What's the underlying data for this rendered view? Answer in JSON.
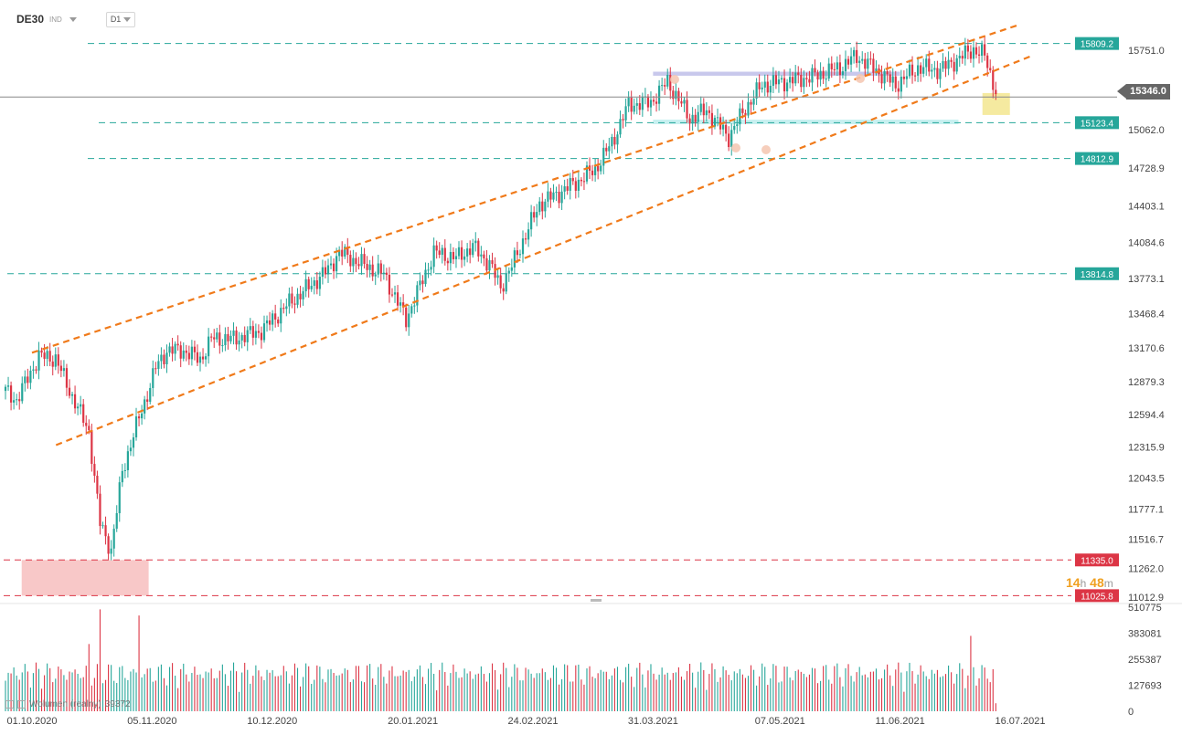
{
  "header": {
    "symbol": "DE30",
    "instrument_type": "IND",
    "timeframe": "D1"
  },
  "timer": {
    "hours": "14",
    "h_unit": "h",
    "minutes": "48",
    "m_unit": "m"
  },
  "volume_legend": {
    "name": "Wolumen (realny)",
    "value": "39372"
  },
  "current_price": "15346.0",
  "colors": {
    "up": "#26a69a",
    "down": "#dc3545",
    "trend": "#f07a1a",
    "level_green": "#26a69a",
    "level_red": "#dc3545",
    "price_line": "#888888"
  },
  "chart_data": {
    "type": "candlestick",
    "symbol": "DE30",
    "timeframe": "D1",
    "y_ticks": [
      15751.0,
      15403.6,
      15062.0,
      14728.9,
      14403.1,
      14084.6,
      13773.1,
      13468.4,
      13170.6,
      12879.3,
      12594.4,
      12315.9,
      12043.5,
      11777.1,
      11516.7,
      11262.0,
      11012.9
    ],
    "y_tick_labels": [
      "15751.0",
      "15403.6",
      "15062.0",
      "14728.9",
      "14403.1",
      "14084.6",
      "13773.1",
      "13468.4",
      "13170.6",
      "12879.3",
      "12594.4",
      "12315.9",
      "12043.5",
      "11777.1",
      "11516.7",
      "11262.0",
      "11012.9"
    ],
    "x_labels": [
      "01.10.2020",
      "05.11.2020",
      "10.12.2020",
      "20.01.2021",
      "24.02.2021",
      "31.03.2021",
      "07.05.2021",
      "11.06.2021",
      "16.07.2021"
    ],
    "ylim": [
      10960,
      16010
    ],
    "current_price": 15346.0,
    "levels": [
      {
        "value": 15809.2,
        "label": "15809.2",
        "color": "green"
      },
      {
        "value": 15123.4,
        "label": "15123.4",
        "color": "green"
      },
      {
        "value": 14812.9,
        "label": "14812.9",
        "color": "green"
      },
      {
        "value": 13814.8,
        "label": "13814.8",
        "color": "green"
      },
      {
        "value": 11335.0,
        "label": "11335.0",
        "color": "red"
      },
      {
        "value": 11025.8,
        "label": "11025.8",
        "color": "red"
      }
    ],
    "trendlines": [
      {
        "name": "upper-channel",
        "points": [
          [
            "01.10.2020",
            13130
          ],
          [
            "16.07.2021",
            15975
          ]
        ]
      },
      {
        "name": "lower-channel",
        "points": [
          [
            "08.10.2020",
            12330
          ],
          [
            "20.07.2021",
            15710
          ]
        ]
      }
    ],
    "zones": [
      {
        "name": "support-zone",
        "from": "28.09.2020",
        "to": "04.11.2020",
        "y_range": [
          11025.8,
          11335.0
        ],
        "color": "#f8c8c8"
      },
      {
        "name": "resistance-band",
        "from": "31.03.2021",
        "to": "11.06.2021",
        "y_range": [
          15530,
          15565
        ],
        "color": "#c8c8ec"
      },
      {
        "name": "support-band",
        "from": "31.03.2021",
        "to": "28.06.2021",
        "y_range": [
          15110,
          15150
        ],
        "color": "#c8f0f0"
      },
      {
        "name": "highlight-zone",
        "from": "05.07.2021",
        "to": "13.07.2021",
        "y_range": [
          15190,
          15380
        ],
        "color": "#f5eaa0"
      }
    ],
    "volume_axis": {
      "ticks": [
        0,
        127693,
        255387,
        383081,
        510775
      ],
      "tick_labels": [
        "0",
        "127693",
        "255387",
        "383081",
        "510775"
      ]
    },
    "volume_last": 39372
  }
}
